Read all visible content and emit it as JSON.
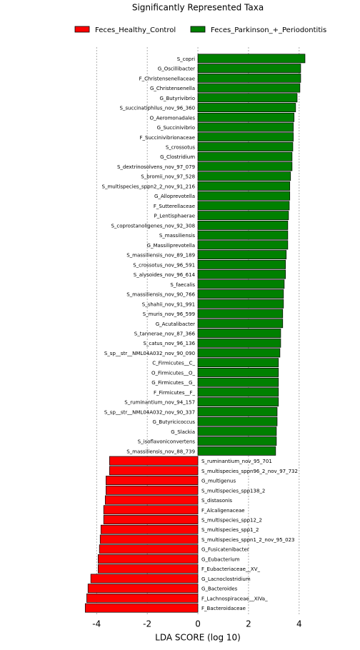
{
  "chart_data": {
    "type": "barh",
    "title": "Significantly Represented Taxa",
    "xlabel": "LDA SCORE (log 10)",
    "categories": [
      "S_copri",
      "G_Oscillibacter",
      "F_Christensenellaceae",
      "G_Christensenella",
      "G_Butyrivibrio",
      "S_succinatiphilus_nov_96_360",
      "O_Aeromonadales",
      "G_Succinivibrio",
      "F_Succinivibrionaceae",
      "S_crossotus",
      "G_Clostridium",
      "S_dextrinosolvens_nov_97_079",
      "S_bromii_nov_97_528",
      "S_multispecies_sppn2_2_nov_91_216",
      "G_Alloprevotella",
      "F_Sutterellaceae",
      "P_Lentisphaerae",
      "S_coprostanoligenes_nov_92_308",
      "S_massiliensis",
      "G_Massiliprevotella",
      "S_massiliensis_nov_89_189",
      "S_crossotus_nov_96_591",
      "S_alysoides_nov_96_614",
      "S_faecalis",
      "S_massiliensis_nov_90_766",
      "S_shahii_nov_91_991",
      "S_muris_nov_96_599",
      "G_Acutalibacter",
      "S_tannerae_nov_87_366",
      "S_catus_nov_96_136",
      "S_sp__str__NML04A032_nov_90_090",
      "C_Firmicutes__C_",
      "O_Firmicutes__O_",
      "G_Firmicutes__G_",
      "F_Firmicutes__F_",
      "S_ruminantium_nov_94_157",
      "S_sp__str__NML04A032_nov_90_337",
      "G_Butyricicoccus",
      "G_Slackia",
      "S_isoflavoniconvertens",
      "S_massiliensis_nov_88_739",
      "S_ruminantium_nov_95_701",
      "S_multispecies_sppn96_2_nov_97_732",
      "G_multigenus",
      "S_multispecies_spp138_2",
      "S_distasonis",
      "F_Alcaligenaceae",
      "S_multispecies_spp12_2",
      "S_multispecies_spp1_2",
      "S_multispecies_sppn1_2_nov_95_023",
      "G_Fusicatenibacter",
      "G_Eubacterium",
      "F_Eubacteriaceae__XV_",
      "G_Lacnoclostridium",
      "G_Bacteroides",
      "F_Lachnospiraceae__XIVa_",
      "F_Bacteroidaceae"
    ],
    "series": [
      {
        "name": "Feces_Healthy_Control",
        "color": "#ff0000",
        "values": [
          null,
          null,
          null,
          null,
          null,
          null,
          null,
          null,
          null,
          null,
          null,
          null,
          null,
          null,
          null,
          null,
          null,
          null,
          null,
          null,
          null,
          null,
          null,
          null,
          null,
          null,
          null,
          null,
          null,
          null,
          null,
          null,
          null,
          null,
          null,
          null,
          null,
          null,
          null,
          null,
          null,
          -3.49,
          -3.49,
          -3.63,
          -3.63,
          -3.66,
          -3.72,
          -3.72,
          -3.83,
          -3.86,
          -3.89,
          -3.94,
          -3.94,
          -4.23,
          -4.34,
          -4.39,
          -4.45
        ]
      },
      {
        "name": "Feces_Parkinson_+_Periodontitis",
        "color": "#008000",
        "values": [
          4.23,
          4.06,
          4.06,
          4.03,
          3.92,
          3.86,
          3.8,
          3.77,
          3.77,
          3.75,
          3.72,
          3.72,
          3.66,
          3.63,
          3.63,
          3.61,
          3.58,
          3.55,
          3.55,
          3.55,
          3.49,
          3.46,
          3.46,
          3.41,
          3.38,
          3.38,
          3.35,
          3.35,
          3.27,
          3.27,
          3.24,
          3.18,
          3.18,
          3.18,
          3.18,
          3.18,
          3.13,
          3.13,
          3.1,
          3.1,
          3.07,
          null,
          null,
          null,
          null,
          null,
          null,
          null,
          null,
          null,
          null,
          null,
          null,
          null,
          null,
          null,
          null
        ]
      }
    ],
    "xlim": [
      -4.6,
      4.4
    ],
    "xticks": [
      -4,
      -2,
      0,
      2,
      4
    ],
    "grid": true
  }
}
